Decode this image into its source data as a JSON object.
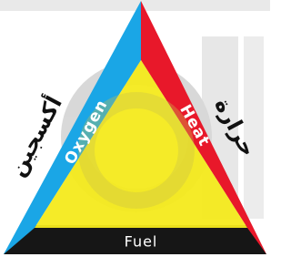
{
  "triangle": {
    "left": {
      "label": "Oxygen",
      "arabic": "أكسجين"
    },
    "right": {
      "label": "Heat",
      "arabic": "حرارة"
    },
    "bottom": {
      "label": "Fuel"
    }
  }
}
